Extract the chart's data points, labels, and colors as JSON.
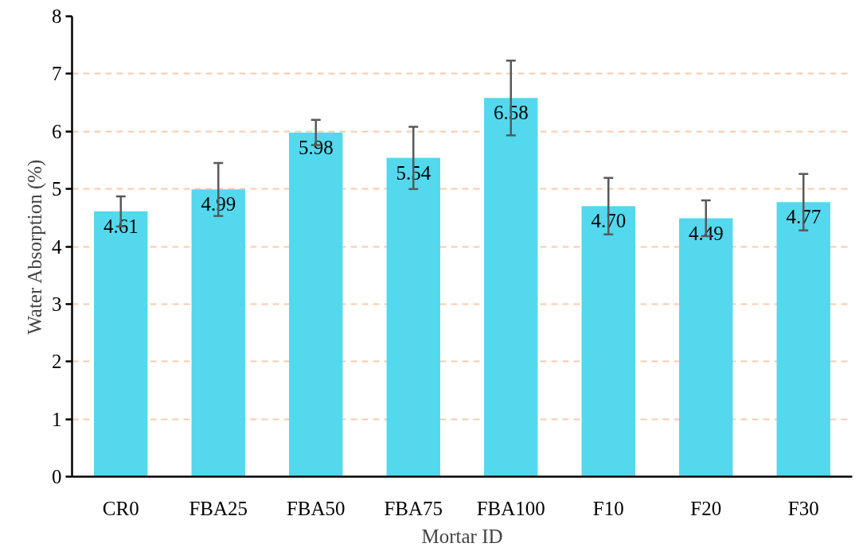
{
  "chart_data": {
    "type": "bar",
    "xlabel": "Mortar ID",
    "ylabel": "Water Absorption (%)",
    "categories": [
      "CR0",
      "FBA25",
      "FBA50",
      "FBA75",
      "FBA100",
      "F10",
      "F20",
      "F30"
    ],
    "values": [
      4.61,
      4.99,
      5.98,
      5.54,
      6.58,
      4.7,
      4.49,
      4.77
    ],
    "value_labels": [
      "4.61",
      "4.99",
      "5.98",
      "5.54",
      "6.58",
      "4.70",
      "4.49",
      "4.77"
    ],
    "errors": [
      0.26,
      0.46,
      0.22,
      0.54,
      0.65,
      0.49,
      0.31,
      0.49
    ],
    "color": "#53d8ee",
    "ylim": [
      0,
      8
    ],
    "yticks": [
      0,
      1,
      2,
      3,
      4,
      5,
      6,
      7,
      8
    ],
    "grid": "y"
  }
}
